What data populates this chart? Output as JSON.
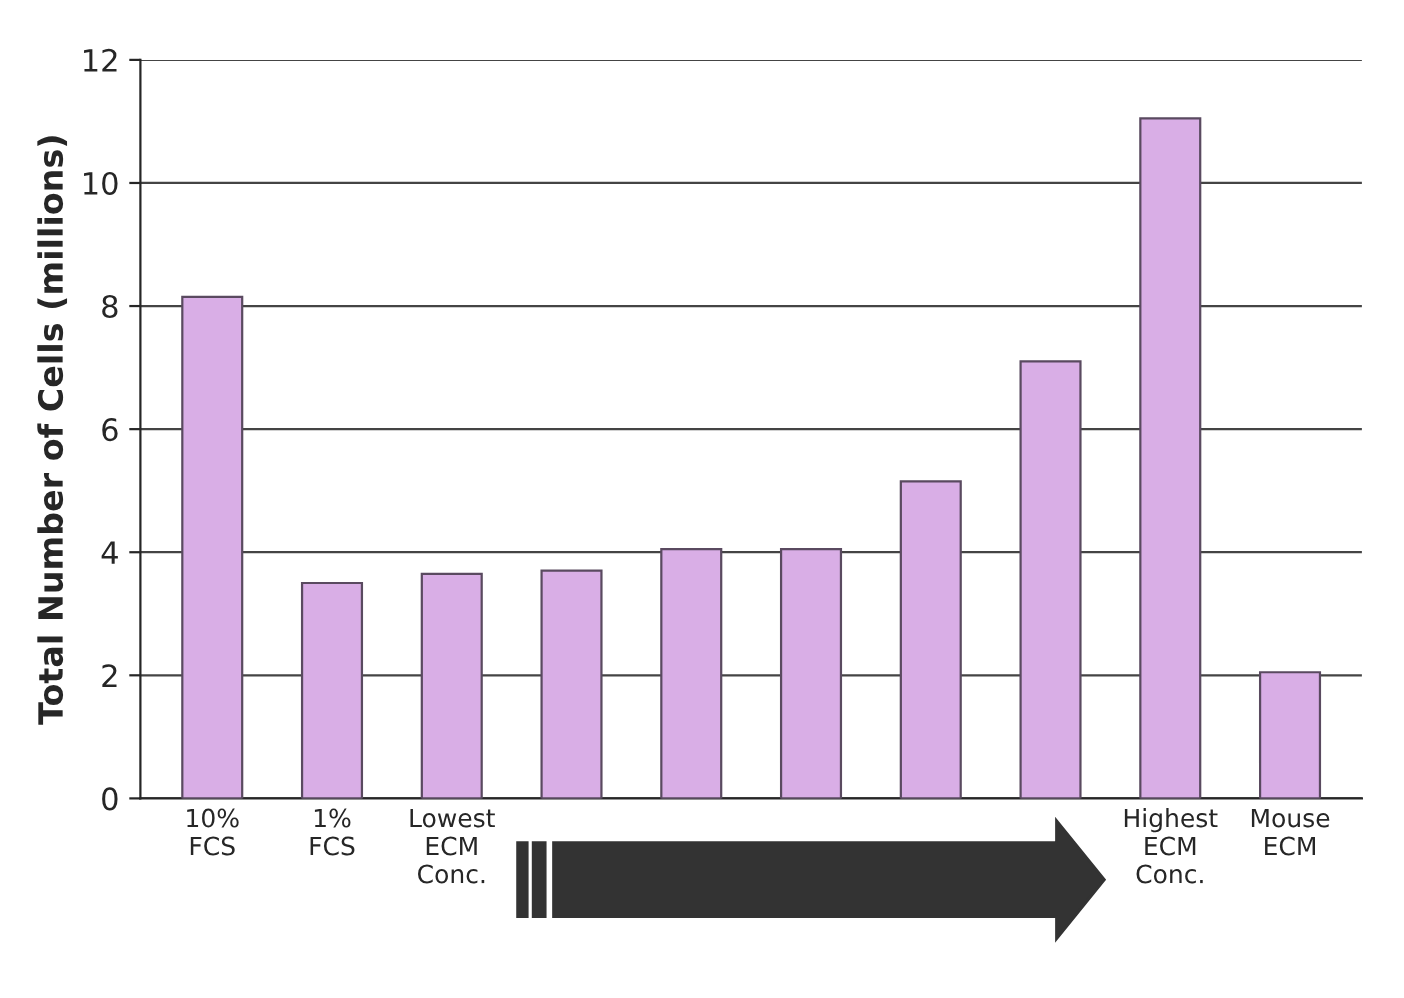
{
  "chart_data": {
    "type": "bar",
    "ylabel": "Total Number of Cells (millions)",
    "categories": [
      "10%\nFCS",
      "1%\nFCS",
      "Lowest\nECM\nConc.",
      null,
      null,
      null,
      null,
      null,
      "Highest\nECM\nConc.",
      "Mouse\nECM"
    ],
    "values": [
      8.15,
      3.5,
      3.65,
      3.7,
      4.05,
      4.05,
      5.15,
      7.1,
      11.05,
      2.05
    ],
    "color": "#d9aee6",
    "ylim": [
      0,
      12
    ],
    "yticks": [
      0,
      2,
      4,
      6,
      8,
      10,
      12
    ],
    "grid": "y"
  }
}
